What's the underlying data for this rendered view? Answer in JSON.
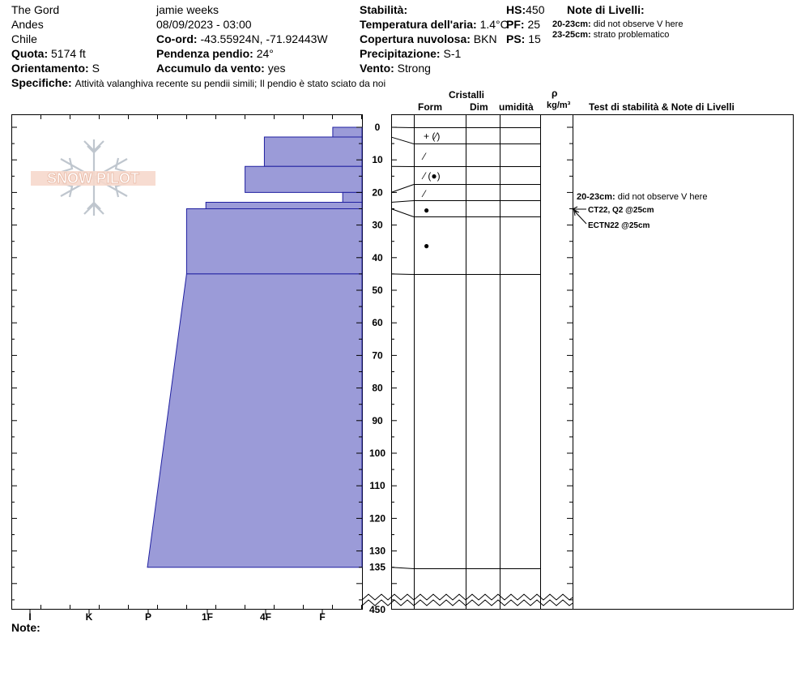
{
  "site": {
    "name": "The Gord",
    "range": "Andes",
    "country": "Chile",
    "elevation_label": "Quota:",
    "elevation": "5174 ft",
    "aspect_label": "Orientamento:",
    "aspect": "S"
  },
  "observer": {
    "name": "jamie weeks",
    "datetime": "08/09/2023 - 03:00",
    "coord_label": "Co-ord:",
    "coord": "-43.55924N, -71.92443W",
    "slope_label": "Pendenza pendio:",
    "slope": "24°",
    "wind_load_label": "Accumulo da vento:",
    "wind_load": "yes"
  },
  "conditions": {
    "stability_label": "Stabilità:",
    "stability": "",
    "air_temp_label": "Temperatura dell'aria:",
    "air_temp": "1.4°C",
    "sky_label": "Copertura nuvolosa:",
    "sky": "BKN",
    "precip_label": "Precipitazione:",
    "precip": "S-1",
    "wind_label": "Vento:",
    "wind": "Strong"
  },
  "depths": {
    "hs_label": "HS:",
    "hs": "450",
    "pf_label": "PF:",
    "pf": "25",
    "ps_label": "PS:",
    "ps": "15"
  },
  "layer_notes": {
    "title": "Note di Livelli:",
    "items": [
      {
        "range": "20-23cm:",
        "text": "did not observe V here"
      },
      {
        "range": "23-25cm:",
        "text": "strato problematico"
      }
    ]
  },
  "specifics": {
    "label": "Specifiche:",
    "text": "Attività valanghiva recente su pendii simili;  Il pendio è stato sciato da noi"
  },
  "columns": {
    "crystals": "Cristalli",
    "form": "Form",
    "size": "Dim",
    "moisture": "umidità",
    "density_symbol": "ρ",
    "density_unit": "kg/m³",
    "tests": "Test di stabilità & Note di Livelli"
  },
  "logo_text": "SNOW PILOT",
  "hardness_axis": [
    "I",
    "K",
    "P",
    "1F",
    "4F",
    "F"
  ],
  "depth_ticks": [
    "0",
    "10",
    "20",
    "30",
    "40",
    "50",
    "60",
    "70",
    "80",
    "90",
    "100",
    "110",
    "120",
    "130",
    "135",
    "450"
  ],
  "notes_label": "Note:",
  "chart_data": {
    "type": "snow-profile",
    "depth_unit": "cm",
    "ylim": [
      0,
      135
    ],
    "total_depth": 450,
    "hardness_scale": [
      "F",
      "4F",
      "1F",
      "P",
      "K",
      "I"
    ],
    "layers": [
      {
        "top": 0,
        "bottom": 3,
        "hardness_top": 0.5,
        "hardness_bottom": 0.5
      },
      {
        "top": 3,
        "bottom": 12,
        "hardness_top": 1.67,
        "hardness_bottom": 1.67
      },
      {
        "top": 12,
        "bottom": 20,
        "hardness_top": 2.0,
        "hardness_bottom": 2.0
      },
      {
        "top": 20,
        "bottom": 23,
        "hardness_top": 0.33,
        "hardness_bottom": 0.33
      },
      {
        "top": 23,
        "bottom": 25,
        "hardness_top": 2.67,
        "hardness_bottom": 2.67
      },
      {
        "top": 25,
        "bottom": 45,
        "hardness_top": 3.0,
        "hardness_bottom": 3.0
      },
      {
        "top": 45,
        "bottom": 135,
        "hardness_top": 3.0,
        "hardness_bottom": 3.67
      }
    ],
    "crystal_forms": [
      {
        "depth": 2.5,
        "symbol": "+ (⁄)"
      },
      {
        "depth": 8.5,
        "symbol": "⁄"
      },
      {
        "depth": 15,
        "symbol": "⁄ (●)"
      },
      {
        "depth": 20,
        "symbol": "⁄"
      },
      {
        "depth": 25,
        "symbol": "●"
      },
      {
        "depth": 36,
        "symbol": "●"
      }
    ],
    "test_results": [
      {
        "depth": 25,
        "text": "CT22, Q2 @25cm"
      },
      {
        "depth": 25,
        "text": "ECTN22 @25cm"
      }
    ],
    "test_notes": [
      {
        "range": "20-23cm:",
        "text": "did not observe V here"
      }
    ]
  }
}
